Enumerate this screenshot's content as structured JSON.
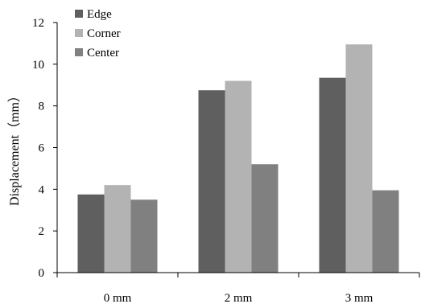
{
  "chart_data": {
    "type": "bar",
    "title": "",
    "xlabel": "",
    "ylabel": "Displacement（mm）",
    "categories": [
      "0 mm",
      "2 mm",
      "3 mm"
    ],
    "series": [
      {
        "name": "Edge",
        "values": [
          3.75,
          8.75,
          9.35
        ],
        "color": "#5f5f5f"
      },
      {
        "name": "Corner",
        "values": [
          4.2,
          9.2,
          10.95
        ],
        "color": "#b3b3b3"
      },
      {
        "name": "Center",
        "values": [
          3.5,
          5.2,
          3.95
        ],
        "color": "#808080"
      }
    ],
    "ylim": [
      0,
      12
    ],
    "yticks": [
      "0",
      "2",
      "4",
      "6",
      "8",
      "10",
      "12"
    ],
    "grid": false,
    "legend_position": "top-left"
  }
}
